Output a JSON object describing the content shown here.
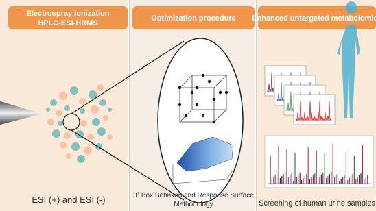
{
  "panels": [
    {
      "header": [
        "Electrospray Ionization",
        "HPLC-ESI-HRMS"
      ],
      "caption": [
        "ESI (+) and ESI (-)"
      ]
    },
    {
      "header": [
        "Optimization procedure"
      ],
      "caption": [
        "3³ Box Behnken and Response Surface",
        "Methodology"
      ]
    },
    {
      "header": [
        "Enhanced untargeted metabolomics"
      ],
      "caption": [
        "Screening of human urine samples"
      ]
    }
  ]
}
